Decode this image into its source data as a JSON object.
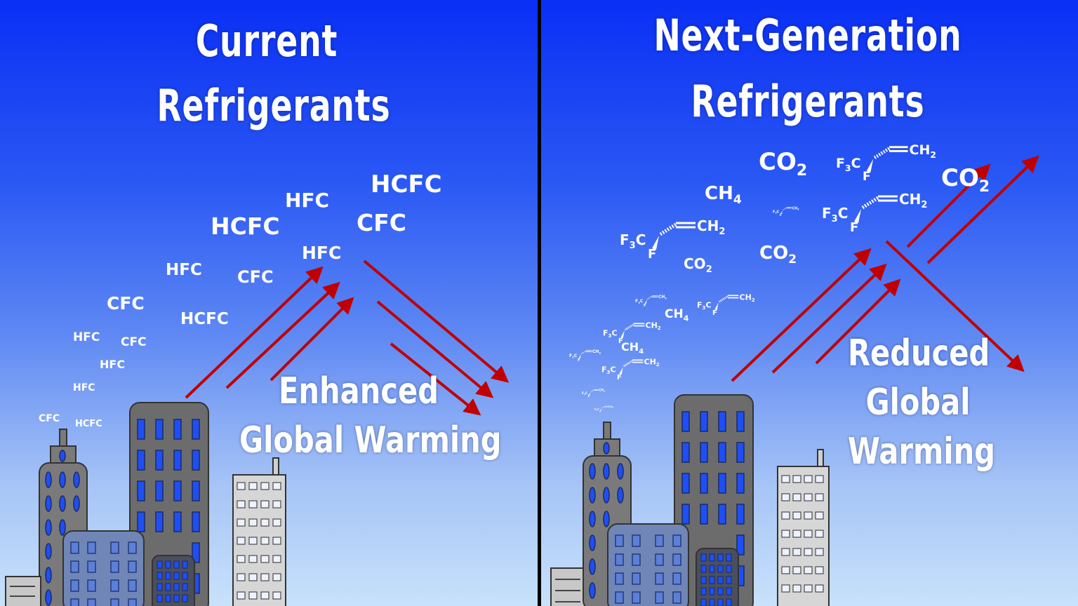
{
  "left": {
    "title_line1": "Current",
    "title_line2": "Refrigerants",
    "caption_line1": "Enhanced",
    "caption_line2": "Global Warming",
    "gases": [
      "HCFC",
      "HFC",
      "HCFC",
      "CFC",
      "HFC",
      "HFC",
      "CFC",
      "CFC",
      "HCFC",
      "HFC",
      "CFC",
      "HFC",
      "HFC",
      "CFC",
      "HCFC"
    ]
  },
  "right": {
    "title_line1": "Next-Generation",
    "title_line2": "Refrigerants",
    "caption_line1": "Reduced",
    "caption_line2": "Global",
    "caption_line3": "Warming",
    "co2": "CO",
    "ch4": "CH",
    "co2_sub": "2",
    "ch4_sub": "4",
    "molecule": {
      "f3": "F",
      "f3_sub": "3",
      "c": "C",
      "f": "F",
      "ch2": "CH",
      "ch2_sub": "2"
    }
  },
  "colors": {
    "sky_top": "#0a2ff5",
    "sky_bottom": "#c8e2fb",
    "arrow": "#c00000",
    "divider": "#000000",
    "window": "#1e4ff5"
  }
}
